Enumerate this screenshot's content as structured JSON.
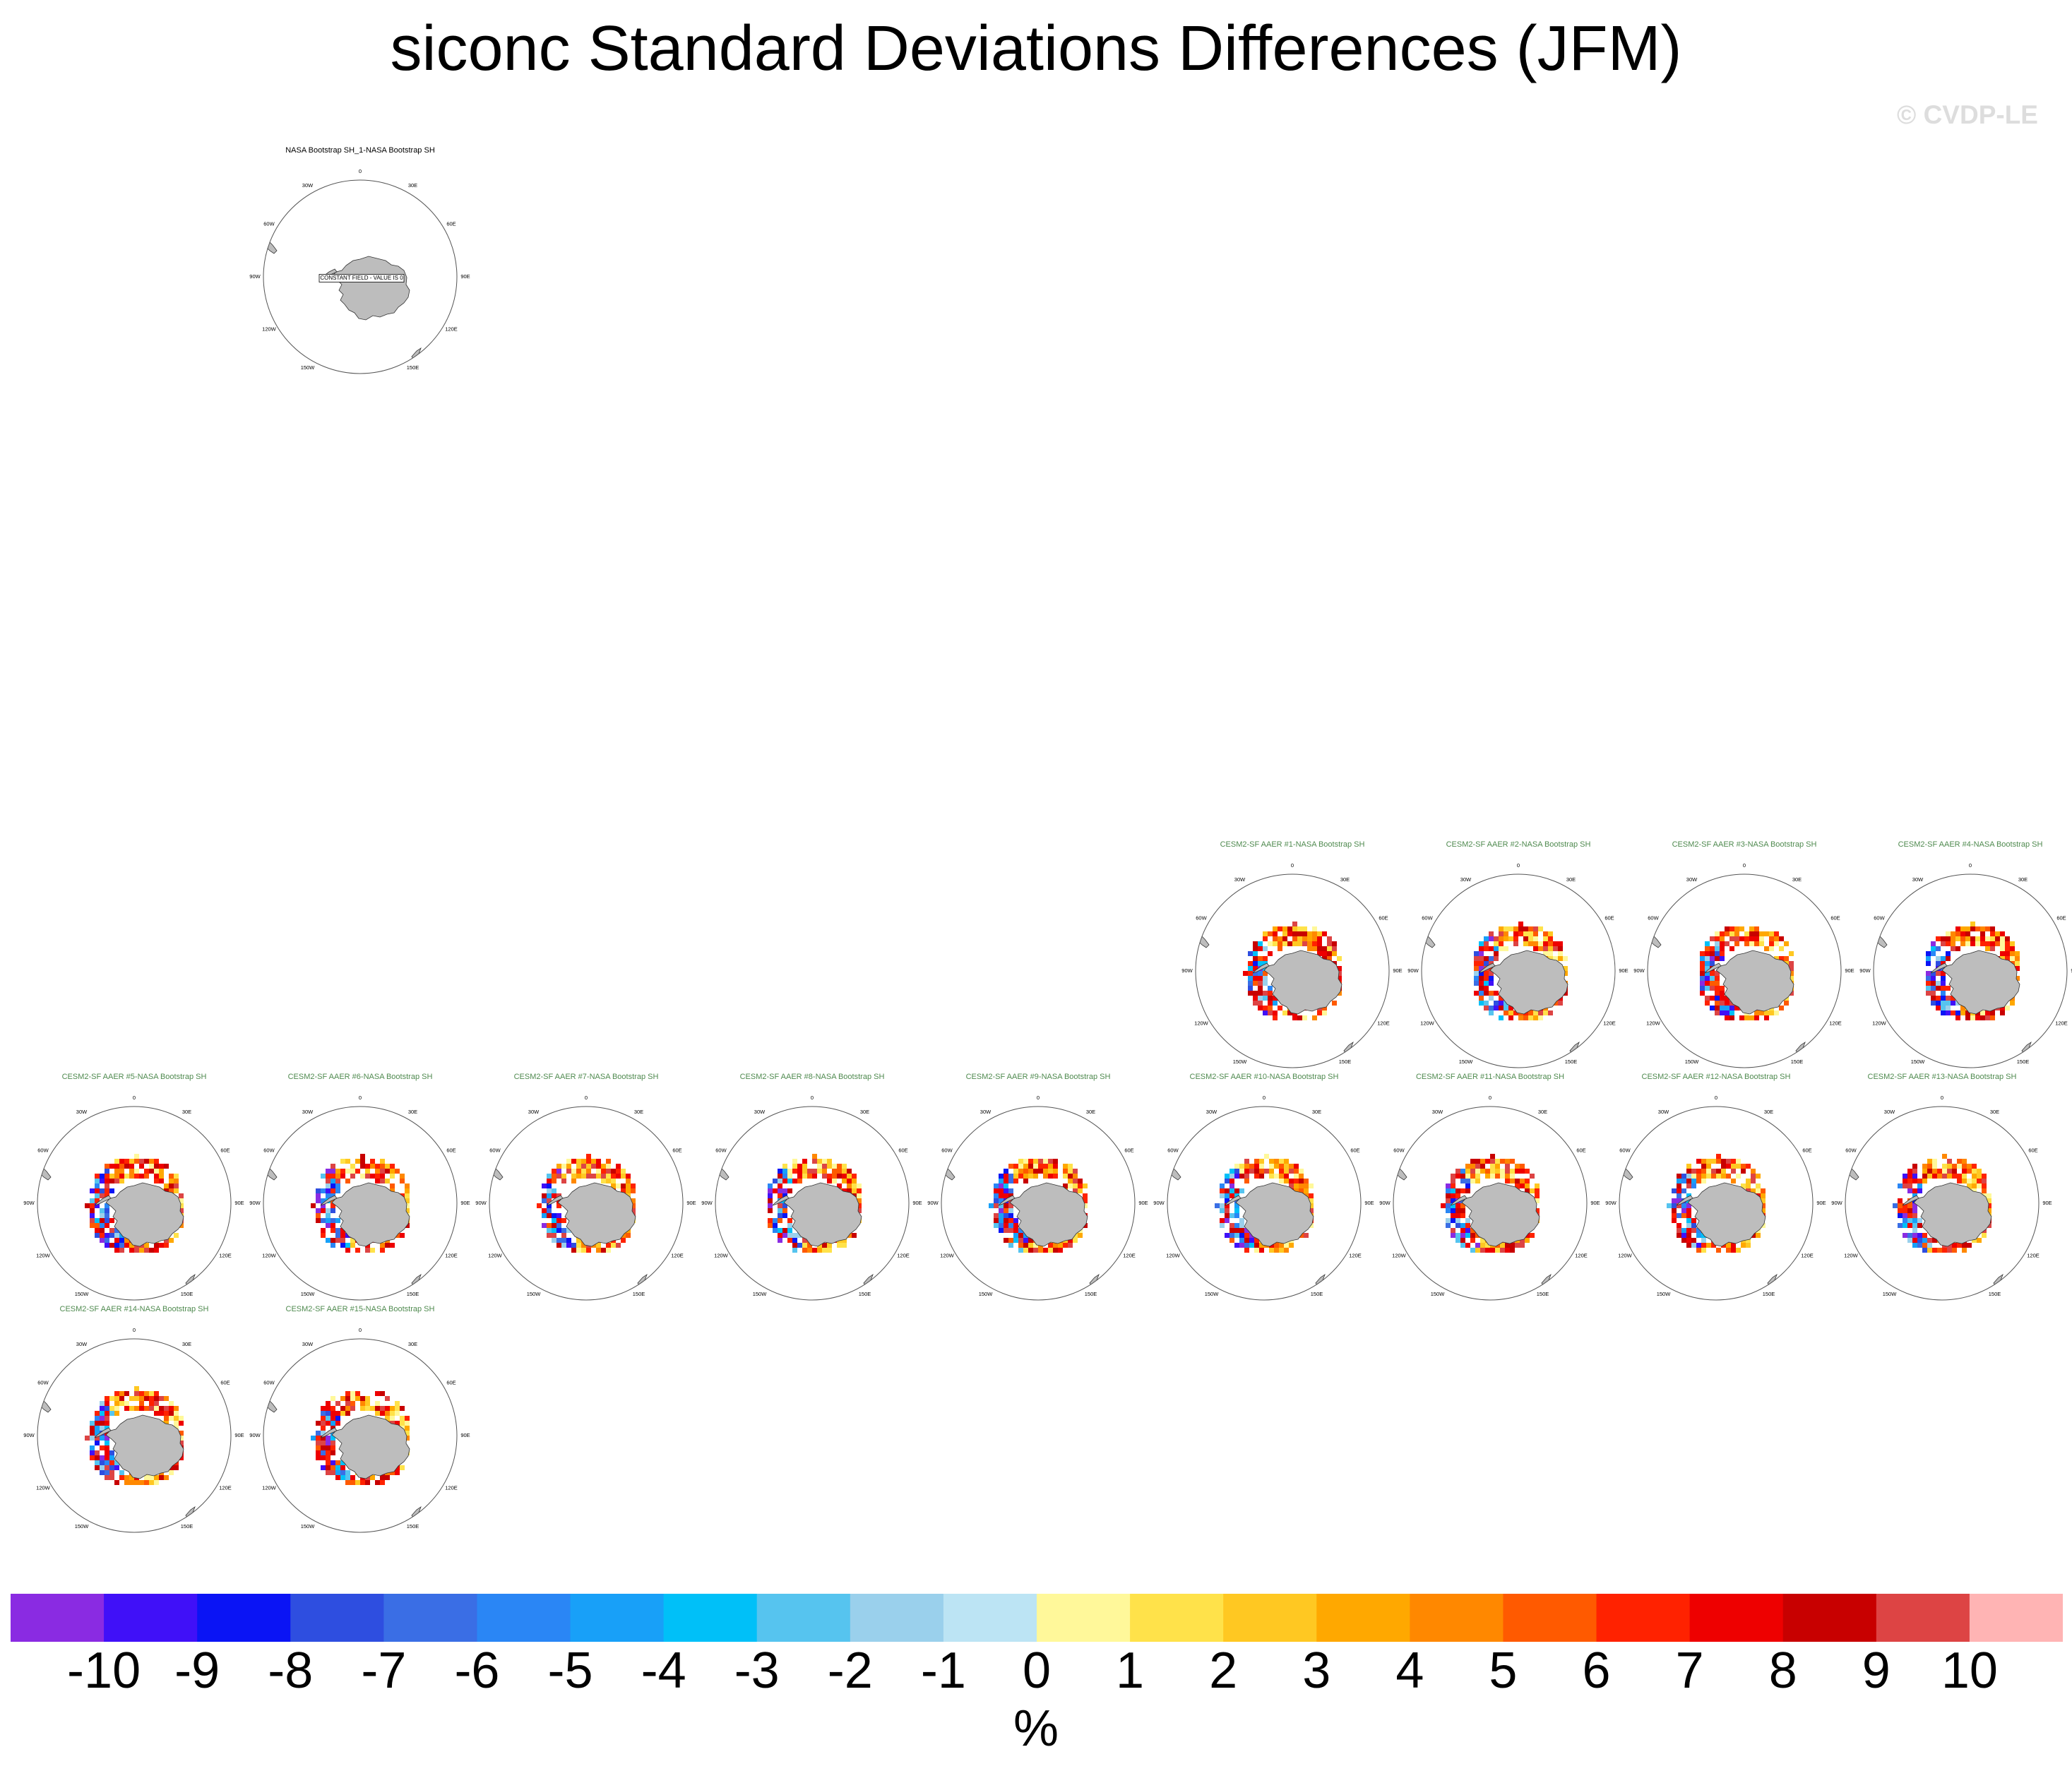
{
  "title": "siconc Standard Deviations Differences (JFM)",
  "watermark": "© CVDP-LE",
  "panels": [
    {
      "title": "NASA Bootstrap SH_1-NASA Bootstrap SH",
      "title_color": "#000000",
      "note": "CONSTANT FIELD - VALUE IS 0",
      "anomaly": false
    },
    {
      "title": "CESM2-SF AAER #1-NASA Bootstrap SH",
      "title_color": "#4f8a4f",
      "anomaly": true
    },
    {
      "title": "CESM2-SF AAER #2-NASA Bootstrap SH",
      "title_color": "#4f8a4f",
      "anomaly": true
    },
    {
      "title": "CESM2-SF AAER #3-NASA Bootstrap SH",
      "title_color": "#4f8a4f",
      "anomaly": true
    },
    {
      "title": "CESM2-SF AAER #4-NASA Bootstrap SH",
      "title_color": "#4f8a4f",
      "anomaly": true
    },
    {
      "title": "CESM2-SF AAER #5-NASA Bootstrap SH",
      "title_color": "#4f8a4f",
      "anomaly": true
    },
    {
      "title": "CESM2-SF AAER #6-NASA Bootstrap SH",
      "title_color": "#4f8a4f",
      "anomaly": true
    },
    {
      "title": "CESM2-SF AAER #7-NASA Bootstrap SH",
      "title_color": "#4f8a4f",
      "anomaly": true
    },
    {
      "title": "CESM2-SF AAER #8-NASA Bootstrap SH",
      "title_color": "#4f8a4f",
      "anomaly": true
    },
    {
      "title": "CESM2-SF AAER #9-NASA Bootstrap SH",
      "title_color": "#4f8a4f",
      "anomaly": true
    },
    {
      "title": "CESM2-SF AAER #10-NASA Bootstrap SH",
      "title_color": "#4f8a4f",
      "anomaly": true
    },
    {
      "title": "CESM2-SF AAER #11-NASA Bootstrap SH",
      "title_color": "#4f8a4f",
      "anomaly": true
    },
    {
      "title": "CESM2-SF AAER #12-NASA Bootstrap SH",
      "title_color": "#4f8a4f",
      "anomaly": true
    },
    {
      "title": "CESM2-SF AAER #13-NASA Bootstrap SH",
      "title_color": "#4f8a4f",
      "anomaly": true
    },
    {
      "title": "CESM2-SF AAER #14-NASA Bootstrap SH",
      "title_color": "#4f8a4f",
      "anomaly": true
    },
    {
      "title": "CESM2-SF AAER #15-NASA Bootstrap SH",
      "title_color": "#4f8a4f",
      "anomaly": true
    }
  ],
  "map_labels": [
    "0",
    "30E",
    "60E",
    "90E",
    "120E",
    "150E",
    "180",
    "150W",
    "120W",
    "90W",
    "60W",
    "30W"
  ],
  "colorbar": {
    "colors": [
      "#8a2be2",
      "#4010f8",
      "#0a14f5",
      "#2e4ee0",
      "#3a6ee5",
      "#2a86f5",
      "#18a0f8",
      "#00c0f8",
      "#56c4ef",
      "#9ad0ec",
      "#bce4f4",
      "#fff89a",
      "#ffe24a",
      "#ffc822",
      "#ffa800",
      "#ff8800",
      "#ff5a00",
      "#ff2200",
      "#ee0000",
      "#c80000",
      "#dd4444",
      "#ffb4b4"
    ],
    "labels": [
      "-10",
      "-9",
      "-8",
      "-7",
      "-6",
      "-5",
      "-4",
      "-3",
      "-2",
      "-1",
      "0",
      "1",
      "2",
      "3",
      "4",
      "5",
      "6",
      "7",
      "8",
      "9",
      "10"
    ],
    "units": "%"
  }
}
